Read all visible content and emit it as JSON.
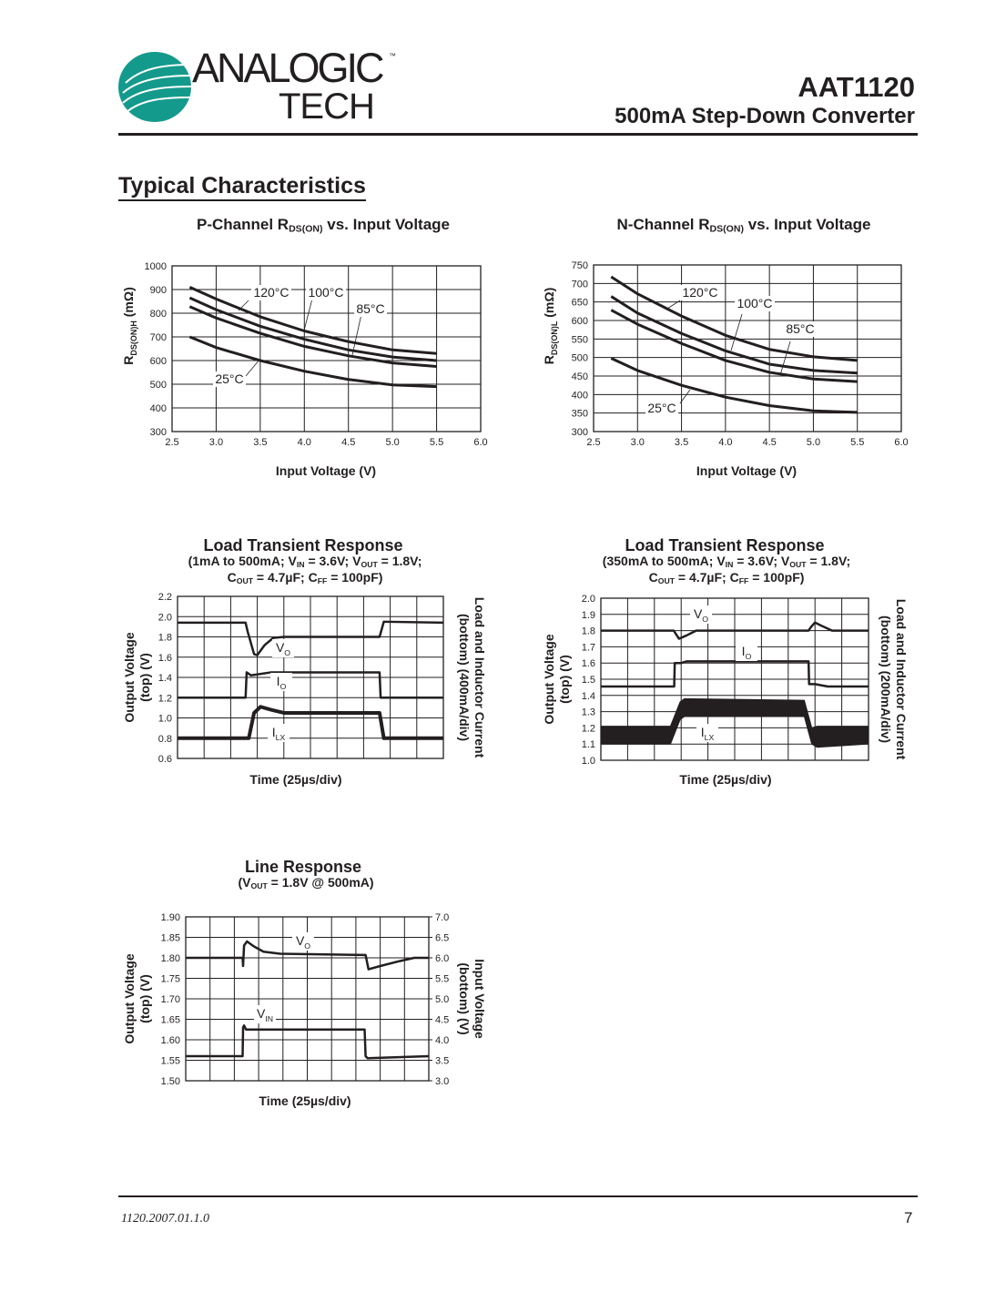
{
  "header": {
    "logo_text": "ANALOGIC",
    "logo_text_2": "TECH",
    "logo_tm": "™",
    "brand_color": "#139a8c",
    "part_number": "AAT1120",
    "subtitle": "500mA Step-Down Converter"
  },
  "section_title": "Typical Characteristics",
  "footer": {
    "doc_code": "1120.2007.01.1.0",
    "page": "7"
  },
  "chart_data": [
    {
      "type": "line",
      "title": {
        "pre": "P-Channel R",
        "sub": "DS(ON)",
        "post": " vs. Input Voltage"
      },
      "xlabel": "Input Voltage (V)",
      "ylabel": {
        "pre": "R",
        "sub": "DS(ON)H",
        "post": " (mΩ)"
      },
      "xlim": [
        2.5,
        6.0
      ],
      "ylim": [
        300,
        1000
      ],
      "xticks": [
        "2.5",
        "3.0",
        "3.5",
        "4.0",
        "4.5",
        "5.0",
        "5.5",
        "6.0"
      ],
      "yticks": [
        "300",
        "400",
        "500",
        "600",
        "700",
        "800",
        "900",
        "1000"
      ],
      "grid": true,
      "series": [
        {
          "name": "120°C",
          "x": [
            2.7,
            3.0,
            3.5,
            4.0,
            4.5,
            5.0,
            5.5
          ],
          "y": [
            910,
            860,
            785,
            725,
            680,
            645,
            630
          ]
        },
        {
          "name": "100°C",
          "x": [
            2.7,
            3.0,
            3.5,
            4.0,
            4.5,
            5.0,
            5.5
          ],
          "y": [
            865,
            815,
            745,
            690,
            645,
            615,
            600
          ]
        },
        {
          "name": "85°C",
          "x": [
            2.7,
            3.0,
            3.5,
            4.0,
            4.5,
            5.0,
            5.5
          ],
          "y": [
            828,
            780,
            715,
            660,
            620,
            590,
            575
          ]
        },
        {
          "name": "25°C",
          "x": [
            2.7,
            3.0,
            3.5,
            4.0,
            4.5,
            5.0,
            5.5
          ],
          "y": [
            700,
            655,
            600,
            555,
            520,
            497,
            490
          ]
        }
      ]
    },
    {
      "type": "line",
      "title": {
        "pre": "N-Channel R",
        "sub": "DS(ON)",
        "post": " vs. Input Voltage"
      },
      "xlabel": "Input Voltage (V)",
      "ylabel": {
        "pre": "R",
        "sub": "DS(ON)L",
        "post": " (mΩ)"
      },
      "xlim": [
        2.5,
        6.0
      ],
      "ylim": [
        300,
        750
      ],
      "xticks": [
        "2.5",
        "3.0",
        "3.5",
        "4.0",
        "4.5",
        "5.0",
        "5.5",
        "6.0"
      ],
      "yticks": [
        "300",
        "350",
        "400",
        "450",
        "500",
        "550",
        "600",
        "650",
        "700",
        "750"
      ],
      "grid": true,
      "series": [
        {
          "name": "120°C",
          "x": [
            2.7,
            3.0,
            3.5,
            4.0,
            4.5,
            5.0,
            5.5
          ],
          "y": [
            718,
            672,
            612,
            560,
            522,
            502,
            492
          ]
        },
        {
          "name": "100°C",
          "x": [
            2.7,
            3.0,
            3.5,
            4.0,
            4.5,
            5.0,
            5.5
          ],
          "y": [
            665,
            620,
            565,
            518,
            482,
            465,
            458
          ]
        },
        {
          "name": "85°C",
          "x": [
            2.7,
            3.0,
            3.5,
            4.0,
            4.5,
            5.0,
            5.5
          ],
          "y": [
            628,
            590,
            538,
            492,
            460,
            442,
            435
          ]
        },
        {
          "name": "25°C",
          "x": [
            2.7,
            3.0,
            3.5,
            4.0,
            4.5,
            5.0,
            5.5
          ],
          "y": [
            498,
            465,
            425,
            393,
            370,
            356,
            352
          ]
        }
      ]
    },
    {
      "type": "line",
      "title": "Load Transient Response",
      "subtitle": [
        [
          {
            "t": "(1mA to 500mA; V"
          },
          {
            "s": "IN"
          },
          {
            "t": " = 3.6V; V"
          },
          {
            "s": "OUT"
          },
          {
            "t": " = 1.8V;"
          }
        ],
        [
          {
            "t": "C"
          },
          {
            "s": "OUT"
          },
          {
            "t": " = 4.7µF; C"
          },
          {
            "s": "FF"
          },
          {
            "t": " = 100pF)"
          }
        ]
      ],
      "xlabel": "Time (25µs/div)",
      "ylabel_left": [
        "Output Voltage",
        "(top) (V)"
      ],
      "ylabel_right": [
        "Load and Inductor Current",
        "(bottom) (400mA/div)"
      ],
      "xlim_us": [
        0,
        250
      ],
      "x_divisions": 10,
      "ylim": [
        0.6,
        2.2
      ],
      "yticks": [
        "0.6",
        "0.8",
        "1.0",
        "1.2",
        "1.4",
        "1.6",
        "1.8",
        "2.0",
        "2.2"
      ],
      "grid": true,
      "series": [
        {
          "name": {
            "main": "V",
            "sub": "O"
          },
          "x": [
            0,
            64,
            66,
            72,
            75,
            82,
            90,
            100,
            190,
            194,
            250
          ],
          "y": [
            1.94,
            1.94,
            1.85,
            1.63,
            1.62,
            1.72,
            1.79,
            1.8,
            1.8,
            1.95,
            1.94
          ]
        },
        {
          "name": {
            "main": "I",
            "sub": "O"
          },
          "x": [
            0,
            64,
            65,
            69,
            88,
            190,
            191,
            250
          ],
          "y": [
            1.2,
            1.2,
            1.45,
            1.42,
            1.45,
            1.45,
            1.2,
            1.2
          ]
        },
        {
          "name": {
            "main": "I",
            "sub": "LX"
          },
          "x": [
            0,
            67,
            72,
            78,
            88,
            100,
            190,
            194,
            250
          ],
          "y": [
            0.8,
            0.8,
            1.05,
            1.11,
            1.08,
            1.05,
            1.05,
            0.8,
            0.8
          ]
        }
      ]
    },
    {
      "type": "line",
      "title": "Load Transient Response",
      "subtitle": [
        [
          {
            "t": "(350mA to 500mA; V"
          },
          {
            "s": "IN"
          },
          {
            "t": " = 3.6V; V"
          },
          {
            "s": "OUT"
          },
          {
            "t": " = 1.8V;"
          }
        ],
        [
          {
            "t": "C"
          },
          {
            "s": "OUT"
          },
          {
            "t": " = 4.7µF; C"
          },
          {
            "s": "FF"
          },
          {
            "t": " = 100pF)"
          }
        ]
      ],
      "xlabel": "Time (25µs/div)",
      "ylabel_left": [
        "Output Voltage",
        "(top) (V)"
      ],
      "ylabel_right": [
        "Load and Inductor Current",
        "(bottom) (200mA/div)"
      ],
      "xlim_us": [
        0,
        250
      ],
      "x_divisions": 10,
      "ylim": [
        1.0,
        2.0
      ],
      "yticks": [
        "1.0",
        "1.1",
        "1.2",
        "1.3",
        "1.4",
        "1.5",
        "1.6",
        "1.7",
        "1.8",
        "1.9",
        "2.0"
      ],
      "grid": true,
      "series": [
        {
          "name": {
            "main": "V",
            "sub": "O"
          },
          "x": [
            0,
            68,
            70,
            73,
            80,
            89,
            194,
            196,
            200,
            206,
            216,
            250
          ],
          "y": [
            1.8,
            1.8,
            1.78,
            1.75,
            1.77,
            1.8,
            1.8,
            1.82,
            1.85,
            1.83,
            1.8,
            1.8
          ]
        },
        {
          "name": {
            "main": "I",
            "sub": "O"
          },
          "x": [
            0,
            68.5,
            69,
            75,
            80,
            194,
            194.5,
            200,
            212,
            250
          ],
          "y": [
            1.455,
            1.455,
            1.6,
            1.6,
            1.61,
            1.61,
            1.47,
            1.47,
            1.455,
            1.455
          ]
        },
        {
          "name": {
            "main": "I",
            "sub": "LX"
          },
          "x": [
            0,
            65,
            74,
            78,
            190,
            197,
            202,
            250
          ],
          "y_max": [
            1.21,
            1.21,
            1.36,
            1.38,
            1.37,
            1.2,
            1.21,
            1.21
          ],
          "y_min": [
            1.1,
            1.1,
            1.25,
            1.27,
            1.27,
            1.1,
            1.08,
            1.1
          ]
        }
      ]
    },
    {
      "type": "line",
      "title": "Line Response",
      "subtitle": [
        [
          {
            "t": "(V"
          },
          {
            "s": "OUT"
          },
          {
            "t": " = 1.8V @ 500mA)"
          }
        ]
      ],
      "xlabel": "Time (25µs/div)",
      "ylabel_left": [
        "Output Voltage",
        "(top) (V)"
      ],
      "ylabel_right": [
        "Input Voltage",
        "(bottom) (V)"
      ],
      "xlim_us": [
        0,
        250
      ],
      "x_divisions": 10,
      "ylim": [
        1.5,
        1.9
      ],
      "yticks": [
        "1.50",
        "1.55",
        "1.60",
        "1.65",
        "1.70",
        "1.75",
        "1.80",
        "1.85",
        "1.90"
      ],
      "ylim_right": [
        3.0,
        7.0
      ],
      "yticks_right": [
        "3.0",
        "3.5",
        "4.0",
        "4.5",
        "5.0",
        "5.5",
        "6.0",
        "6.5",
        "7.0"
      ],
      "grid": true,
      "series": [
        {
          "name": {
            "main": "V",
            "sub": "O"
          },
          "axis": "left",
          "x": [
            0,
            58.5,
            59,
            60,
            63,
            70,
            80,
            97,
            184,
            185,
            188,
            200,
            220,
            235,
            250
          ],
          "y": [
            1.8,
            1.8,
            1.78,
            1.83,
            1.84,
            1.828,
            1.815,
            1.81,
            1.807,
            1.807,
            1.772,
            1.78,
            1.792,
            1.8,
            1.8
          ]
        },
        {
          "name": {
            "main": "V",
            "sub": "IN"
          },
          "axis": "right",
          "x": [
            0,
            58.5,
            59,
            60,
            62,
            184,
            185,
            187,
            250
          ],
          "y": [
            3.6,
            3.6,
            4.3,
            4.35,
            4.25,
            4.25,
            3.6,
            3.55,
            3.6
          ]
        }
      ]
    }
  ]
}
